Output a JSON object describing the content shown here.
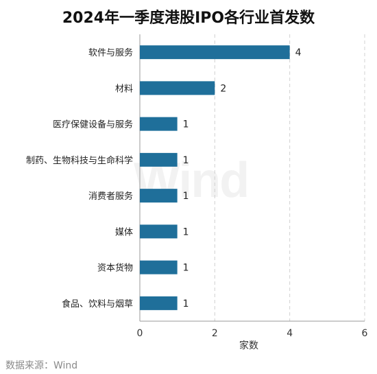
{
  "chart_data": {
    "type": "bar",
    "orientation": "horizontal",
    "title": "2024年一季度港股IPO各行业首发数",
    "categories": [
      "软件与服务",
      "材料",
      "医疗保健设备与服务",
      "制药、生物科技与生命科学",
      "消费者服务",
      "媒体",
      "资本货物",
      "食品、饮料与烟草"
    ],
    "values": [
      4,
      2,
      1,
      1,
      1,
      1,
      1,
      1
    ],
    "xlabel": "家数",
    "ylabel": "",
    "xlim": [
      0,
      6
    ],
    "xticks": [
      0,
      2,
      4,
      6
    ],
    "grid": "vertical-dashed",
    "legend": "none",
    "bar_color": "#1f6f9a"
  },
  "watermark": "Wind",
  "source": "数据来源：Wind"
}
